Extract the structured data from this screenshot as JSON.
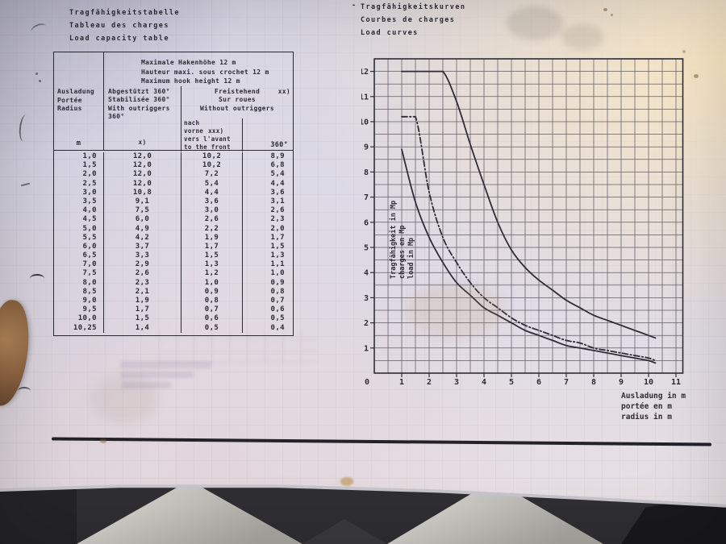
{
  "page": {
    "header_left": {
      "lines": [
        "Tragfähigkeitstabelle",
        "Tableau des charges",
        "Load capacity table"
      ]
    },
    "header_right": {
      "bullet": "-",
      "lines": [
        "Tragfähigkeitskurven",
        "Courbes de charges",
        "Load curves"
      ]
    }
  },
  "table": {
    "corner": {
      "lines": [
        "Ausladung",
        "Portée",
        "Radius"
      ],
      "unit": "m"
    },
    "span_header": {
      "lines": [
        "Maximale Hakenhöhe  12 m",
        "Hauteur maxi. sous crochet  12 m",
        "Maximum hook height  12 m"
      ]
    },
    "col_outriggers": {
      "lines": [
        "Abgestützt 360°",
        "Stabilisée 360°",
        "With outriggers 360°"
      ],
      "footnote": "x)"
    },
    "col_free": {
      "lines": [
        "Freistehend",
        "Sur roues",
        "Without outriggers"
      ],
      "footnote": "xx)"
    },
    "col_front": {
      "lines": [
        "nach vorne",
        "vers l'avant",
        "to the front"
      ],
      "footnote": "xxx)"
    },
    "col_360": {
      "label": "360°"
    },
    "rows": [
      [
        "1,0",
        "12,0",
        "10,2",
        "8,9"
      ],
      [
        "1,5",
        "12,0",
        "10,2",
        "6,8"
      ],
      [
        "2,0",
        "12,0",
        "7,2",
        "5,4"
      ],
      [
        "2,5",
        "12,0",
        "5,4",
        "4,4"
      ],
      [
        "3,0",
        "10,8",
        "4,4",
        "3,6"
      ],
      [
        "3,5",
        "9,1",
        "3,6",
        "3,1"
      ],
      [
        "4,0",
        "7,5",
        "3,0",
        "2,6"
      ],
      [
        "4,5",
        "6,0",
        "2,6",
        "2,3"
      ],
      [
        "5,0",
        "4,9",
        "2,2",
        "2,0"
      ],
      [
        "5,5",
        "4,2",
        "1,9",
        "1,7"
      ],
      [
        "6,0",
        "3,7",
        "1,7",
        "1,5"
      ],
      [
        "6,5",
        "3,3",
        "1,5",
        "1,3"
      ],
      [
        "7,0",
        "2,9",
        "1,3",
        "1,1"
      ],
      [
        "7,5",
        "2,6",
        "1,2",
        "1,0"
      ],
      [
        "8,0",
        "2,3",
        "1,0",
        "0,9"
      ],
      [
        "8,5",
        "2,1",
        "0,9",
        "0,8"
      ],
      [
        "9,0",
        "1,9",
        "0,8",
        "0,7"
      ],
      [
        "9,5",
        "1,7",
        "0,7",
        "0,6"
      ],
      [
        "10,0",
        "1,5",
        "0,6",
        "0,5"
      ],
      [
        "10,25",
        "1,4",
        "0,5",
        "0,4"
      ]
    ]
  },
  "chart_data": {
    "type": "line",
    "title": "Tragfähigkeitskurven / Load curves",
    "xlabel_lines": [
      "Ausladung in  m",
      "portée en m",
      "radius in m"
    ],
    "ylabel_lines": [
      "Tragfähigkeit in Mp",
      "charges en Mp",
      "load in Mp"
    ],
    "xlim": [
      0,
      11.25
    ],
    "ylim": [
      0,
      12.5
    ],
    "grid": true,
    "grid_step": 0.5,
    "x_ticks": [
      1,
      2,
      3,
      4,
      5,
      6,
      7,
      8,
      9,
      10,
      11
    ],
    "y_ticks": [
      1,
      2,
      3,
      4,
      5,
      6,
      7,
      8,
      9,
      10,
      11,
      12
    ],
    "origin_label": "0",
    "series": [
      {
        "name": "with outriggers 360°",
        "style": "solid",
        "points": [
          [
            1,
            12
          ],
          [
            1.5,
            12
          ],
          [
            2,
            12
          ],
          [
            2.5,
            12
          ],
          [
            3,
            10.8
          ],
          [
            3.5,
            9.1
          ],
          [
            4,
            7.5
          ],
          [
            4.5,
            6.0
          ],
          [
            5,
            4.9
          ],
          [
            5.5,
            4.2
          ],
          [
            6,
            3.7
          ],
          [
            6.5,
            3.3
          ],
          [
            7,
            2.9
          ],
          [
            7.5,
            2.6
          ],
          [
            8,
            2.3
          ],
          [
            8.5,
            2.1
          ],
          [
            9,
            1.9
          ],
          [
            9.5,
            1.7
          ],
          [
            10,
            1.5
          ],
          [
            10.25,
            1.4
          ]
        ]
      },
      {
        "name": "without outriggers, to the front",
        "style": "dashdot",
        "points": [
          [
            1,
            10.2
          ],
          [
            1.5,
            10.2
          ],
          [
            2,
            7.2
          ],
          [
            2.5,
            5.4
          ],
          [
            3,
            4.4
          ],
          [
            3.5,
            3.6
          ],
          [
            4,
            3.0
          ],
          [
            4.5,
            2.6
          ],
          [
            5,
            2.2
          ],
          [
            5.5,
            1.9
          ],
          [
            6,
            1.7
          ],
          [
            6.5,
            1.5
          ],
          [
            7,
            1.3
          ],
          [
            7.5,
            1.2
          ],
          [
            8,
            1.0
          ],
          [
            8.5,
            0.9
          ],
          [
            9,
            0.8
          ],
          [
            9.5,
            0.7
          ],
          [
            10,
            0.6
          ],
          [
            10.25,
            0.5
          ]
        ]
      },
      {
        "name": "without outriggers 360°",
        "style": "solid",
        "points": [
          [
            1,
            8.9
          ],
          [
            1.5,
            6.8
          ],
          [
            2,
            5.4
          ],
          [
            2.5,
            4.4
          ],
          [
            3,
            3.6
          ],
          [
            3.5,
            3.1
          ],
          [
            4,
            2.6
          ],
          [
            4.5,
            2.3
          ],
          [
            5,
            2.0
          ],
          [
            5.5,
            1.7
          ],
          [
            6,
            1.5
          ],
          [
            6.5,
            1.3
          ],
          [
            7,
            1.1
          ],
          [
            7.5,
            1.0
          ],
          [
            8,
            0.9
          ],
          [
            8.5,
            0.8
          ],
          [
            9,
            0.7
          ],
          [
            9.5,
            0.6
          ],
          [
            10,
            0.5
          ],
          [
            10.25,
            0.4
          ]
        ]
      }
    ],
    "ink_color": "#2e2d35",
    "grid_color": "#4a4952"
  }
}
